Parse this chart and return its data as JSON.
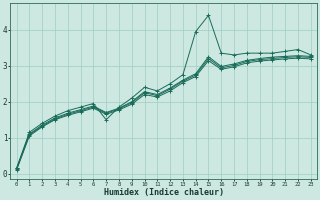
{
  "xlabel": "Humidex (Indice chaleur)",
  "bg_color": "#cce8e0",
  "line_color": "#1a6b5a",
  "grid_color": "#9ecec4",
  "xlim": [
    -0.5,
    23.5
  ],
  "ylim": [
    -0.15,
    4.75
  ],
  "x_ticks": [
    0,
    1,
    2,
    3,
    4,
    5,
    6,
    7,
    8,
    9,
    10,
    11,
    12,
    13,
    14,
    15,
    16,
    17,
    18,
    19,
    20,
    21,
    22,
    23
  ],
  "y_ticks": [
    0,
    1,
    2,
    3,
    4
  ],
  "lines": [
    {
      "x": [
        0,
        1,
        2,
        3,
        4,
        5,
        6,
        7,
        8,
        9,
        10,
        11,
        12,
        13,
        14,
        15,
        16,
        17,
        18,
        19,
        20,
        21,
        22,
        23
      ],
      "y": [
        0.15,
        1.15,
        1.4,
        1.6,
        1.75,
        1.85,
        1.95,
        1.5,
        1.85,
        2.1,
        2.4,
        2.3,
        2.5,
        2.75,
        3.95,
        4.4,
        3.35,
        3.3,
        3.35,
        3.35,
        3.35,
        3.4,
        3.45,
        3.3
      ]
    },
    {
      "x": [
        0,
        1,
        2,
        3,
        4,
        5,
        6,
        7,
        8,
        9,
        10,
        11,
        12,
        13,
        14,
        15,
        16,
        17,
        18,
        19,
        20,
        21,
        22,
        23
      ],
      "y": [
        0.15,
        1.1,
        1.35,
        1.55,
        1.68,
        1.78,
        1.88,
        1.7,
        1.82,
        2.0,
        2.28,
        2.2,
        2.38,
        2.6,
        2.78,
        3.25,
        2.98,
        3.05,
        3.15,
        3.2,
        3.24,
        3.26,
        3.28,
        3.26
      ]
    },
    {
      "x": [
        0,
        1,
        2,
        3,
        4,
        5,
        6,
        7,
        8,
        9,
        10,
        11,
        12,
        13,
        14,
        15,
        16,
        17,
        18,
        19,
        20,
        21,
        22,
        23
      ],
      "y": [
        0.12,
        1.08,
        1.32,
        1.52,
        1.65,
        1.75,
        1.85,
        1.68,
        1.8,
        1.97,
        2.25,
        2.17,
        2.35,
        2.57,
        2.74,
        3.2,
        2.94,
        3.01,
        3.12,
        3.17,
        3.2,
        3.23,
        3.25,
        3.23
      ]
    },
    {
      "x": [
        0,
        1,
        2,
        3,
        4,
        5,
        6,
        7,
        8,
        9,
        10,
        11,
        12,
        13,
        14,
        15,
        16,
        17,
        18,
        19,
        20,
        21,
        22,
        23
      ],
      "y": [
        0.1,
        1.05,
        1.3,
        1.5,
        1.62,
        1.72,
        1.82,
        1.65,
        1.77,
        1.93,
        2.2,
        2.13,
        2.3,
        2.53,
        2.7,
        3.14,
        2.9,
        2.97,
        3.08,
        3.13,
        3.16,
        3.19,
        3.21,
        3.19
      ]
    }
  ]
}
